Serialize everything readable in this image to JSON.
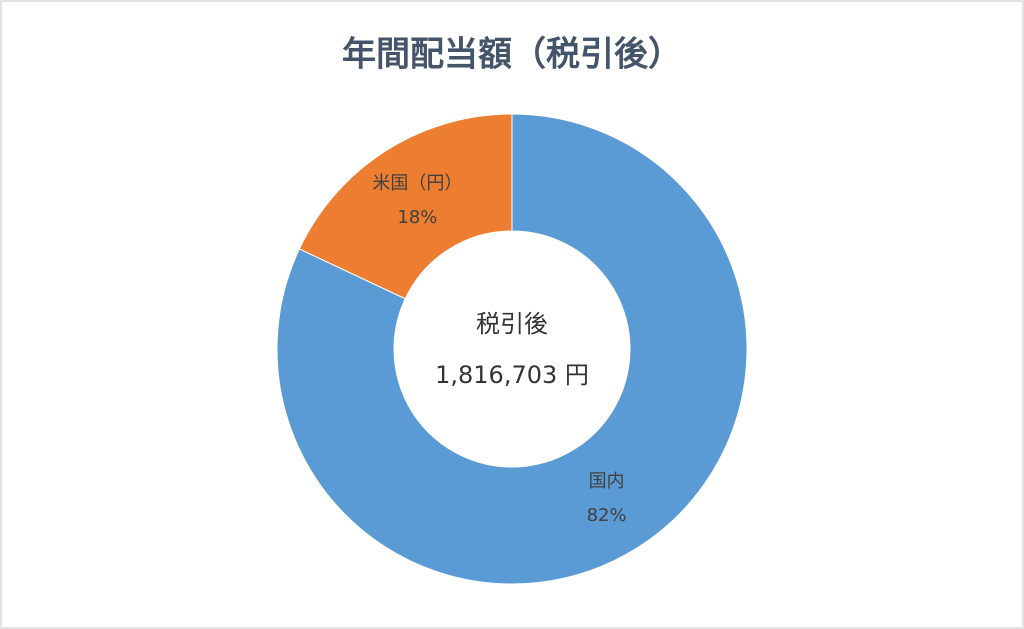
{
  "chart_data": {
    "type": "donut",
    "title": "年間配当額（税引後）",
    "categories": [
      "国内",
      "米国（円）"
    ],
    "values": [
      82,
      18
    ],
    "value_labels": [
      "82%",
      "18%"
    ],
    "colors": [
      "#5b9bd5",
      "#ed7d31"
    ],
    "annotations": [
      "税引後",
      "1,816,703 円"
    ]
  }
}
